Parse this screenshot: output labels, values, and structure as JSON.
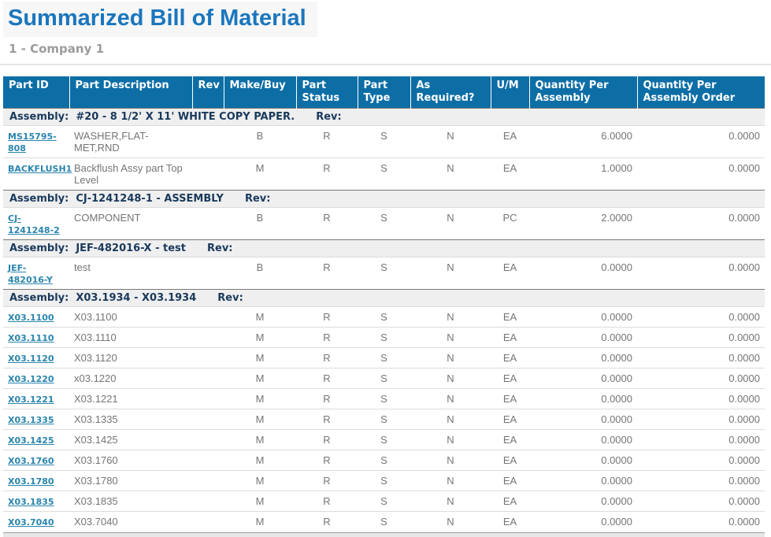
{
  "page": {
    "title": "Summarized Bill of Material",
    "subtitle": "1 - Company 1"
  },
  "table": {
    "assembly_label": "Assembly:",
    "rev_label": "Rev:",
    "columns": [
      "Part ID",
      "Part Description",
      "Rev",
      "Make/Buy",
      "Part\nStatus",
      "Part\nType",
      "As\nRequired?",
      "U/M",
      "Quantity Per\nAssembly",
      "Quantity Per\nAssembly Order"
    ],
    "groups": [
      {
        "assembly": "#20 - 8 1/2' X 11' WHITE COPY PAPER.",
        "rows": [
          {
            "part_id": "MS15795-808",
            "description": "WASHER,FLAT-MET,RND",
            "rev": "",
            "make_buy": "B",
            "part_status": "R",
            "part_type": "S",
            "as_required": "N",
            "um": "EA",
            "qty_per_assembly": "6.0000",
            "qty_per_order": "0.0000"
          },
          {
            "part_id": "BACKFLUSH1",
            "description": "Backflush Assy part Top Level",
            "rev": "",
            "make_buy": "M",
            "part_status": "R",
            "part_type": "S",
            "as_required": "N",
            "um": "EA",
            "qty_per_assembly": "1.0000",
            "qty_per_order": "0.0000"
          }
        ]
      },
      {
        "assembly": "CJ-1241248-1 - ASSEMBLY",
        "rows": [
          {
            "part_id": "CJ-1241248-2",
            "description": "COMPONENT",
            "rev": "",
            "make_buy": "B",
            "part_status": "R",
            "part_type": "S",
            "as_required": "N",
            "um": "PC",
            "qty_per_assembly": "2.0000",
            "qty_per_order": "0.0000"
          }
        ]
      },
      {
        "assembly": "JEF-482016-X - test",
        "rows": [
          {
            "part_id": "JEF-482016-Y",
            "description": "test",
            "rev": "",
            "make_buy": "B",
            "part_status": "R",
            "part_type": "S",
            "as_required": "N",
            "um": "EA",
            "qty_per_assembly": "0.0000",
            "qty_per_order": "0.0000"
          }
        ]
      },
      {
        "assembly": "X03.1934 - X03.1934",
        "rows": [
          {
            "part_id": "X03.1100",
            "description": "X03.1100",
            "rev": "",
            "make_buy": "M",
            "part_status": "R",
            "part_type": "S",
            "as_required": "N",
            "um": "EA",
            "qty_per_assembly": "0.0000",
            "qty_per_order": "0.0000"
          },
          {
            "part_id": "X03.1110",
            "description": "X03.1110",
            "rev": "",
            "make_buy": "M",
            "part_status": "R",
            "part_type": "S",
            "as_required": "N",
            "um": "EA",
            "qty_per_assembly": "0.0000",
            "qty_per_order": "0.0000"
          },
          {
            "part_id": "X03.1120",
            "description": "X03.1120",
            "rev": "",
            "make_buy": "M",
            "part_status": "R",
            "part_type": "S",
            "as_required": "N",
            "um": "EA",
            "qty_per_assembly": "0.0000",
            "qty_per_order": "0.0000"
          },
          {
            "part_id": "X03.1220",
            "description": "x03.1220",
            "rev": "",
            "make_buy": "M",
            "part_status": "R",
            "part_type": "S",
            "as_required": "N",
            "um": "EA",
            "qty_per_assembly": "0.0000",
            "qty_per_order": "0.0000"
          },
          {
            "part_id": "X03.1221",
            "description": "X03.1221",
            "rev": "",
            "make_buy": "M",
            "part_status": "R",
            "part_type": "S",
            "as_required": "N",
            "um": "EA",
            "qty_per_assembly": "0.0000",
            "qty_per_order": "0.0000"
          },
          {
            "part_id": "X03.1335",
            "description": "X03.1335",
            "rev": "",
            "make_buy": "M",
            "part_status": "R",
            "part_type": "S",
            "as_required": "N",
            "um": "EA",
            "qty_per_assembly": "0.0000",
            "qty_per_order": "0.0000"
          },
          {
            "part_id": "X03.1425",
            "description": "X03.1425",
            "rev": "",
            "make_buy": "M",
            "part_status": "R",
            "part_type": "S",
            "as_required": "N",
            "um": "EA",
            "qty_per_assembly": "0.0000",
            "qty_per_order": "0.0000"
          },
          {
            "part_id": "X03.1760",
            "description": "X03.1760",
            "rev": "",
            "make_buy": "M",
            "part_status": "R",
            "part_type": "S",
            "as_required": "N",
            "um": "EA",
            "qty_per_assembly": "0.0000",
            "qty_per_order": "0.0000"
          },
          {
            "part_id": "X03.1780",
            "description": "X03.1780",
            "rev": "",
            "make_buy": "M",
            "part_status": "R",
            "part_type": "S",
            "as_required": "N",
            "um": "EA",
            "qty_per_assembly": "0.0000",
            "qty_per_order": "0.0000"
          },
          {
            "part_id": "X03.1835",
            "description": "X03.1835",
            "rev": "",
            "make_buy": "M",
            "part_status": "R",
            "part_type": "S",
            "as_required": "N",
            "um": "EA",
            "qty_per_assembly": "0.0000",
            "qty_per_order": "0.0000"
          },
          {
            "part_id": "X03.7040",
            "description": "X03.7040",
            "rev": "",
            "make_buy": "M",
            "part_status": "R",
            "part_type": "S",
            "as_required": "N",
            "um": "EA",
            "qty_per_assembly": "0.0000",
            "qty_per_order": "0.0000"
          }
        ]
      }
    ]
  }
}
